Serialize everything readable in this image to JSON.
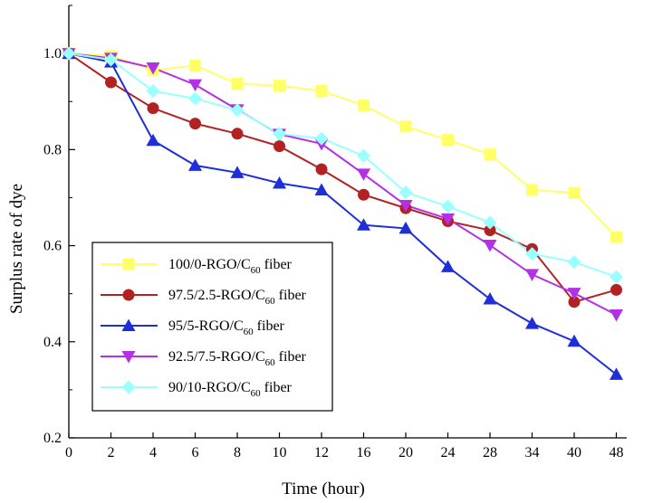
{
  "chart_data": {
    "type": "line",
    "xlabel": "Time (hour)",
    "ylabel": "Surplus rate of dye",
    "categories": [
      "0",
      "2",
      "4",
      "6",
      "8",
      "10",
      "12",
      "16",
      "20",
      "24",
      "28",
      "34",
      "40",
      "48"
    ],
    "ylim": [
      0.2,
      1.1
    ],
    "yticks": [
      "0.2",
      "0.4",
      "0.6",
      "0.8",
      "1.0"
    ],
    "grid": false,
    "legend_position": "bottom-left",
    "series": [
      {
        "name": "100/0-RGO/C60 fiber",
        "legend_main": "100/0-RGO/C",
        "legend_sub": "60",
        "legend_tail": " fiber",
        "color": "#ffff66",
        "marker": "square",
        "values": [
          1.0,
          0.995,
          0.965,
          0.975,
          0.937,
          0.933,
          0.922,
          0.892,
          0.848,
          0.82,
          0.79,
          0.716,
          0.71,
          0.618
        ]
      },
      {
        "name": "97.5/2.5-RGO/C60 fiber",
        "legend_main": "97.5/2.5-RGO/C",
        "legend_sub": "60",
        "legend_tail": " fiber",
        "color": "#b22222",
        "marker": "circle",
        "values": [
          1.0,
          0.94,
          0.886,
          0.854,
          0.833,
          0.807,
          0.759,
          0.706,
          0.678,
          0.651,
          0.632,
          0.593,
          0.483,
          0.508
        ]
      },
      {
        "name": "95/5-RGO/C60 fiber",
        "legend_main": "95/5-RGO/C",
        "legend_sub": "60",
        "legend_tail": " fiber",
        "color": "#1f2fd8",
        "marker": "triangle-up",
        "values": [
          1.0,
          0.982,
          0.819,
          0.767,
          0.752,
          0.73,
          0.716,
          0.643,
          0.636,
          0.556,
          0.489,
          0.438,
          0.401,
          0.332
        ]
      },
      {
        "name": "92.5/7.5-RGO/C60 fiber",
        "legend_main": "92.5/7.5-RGO/C",
        "legend_sub": "60",
        "legend_tail": " fiber",
        "color": "#b330e6",
        "marker": "triangle-down",
        "values": [
          1.0,
          0.99,
          0.97,
          0.935,
          0.883,
          0.832,
          0.812,
          0.749,
          0.684,
          0.656,
          0.601,
          0.54,
          0.501,
          0.456
        ]
      },
      {
        "name": "90/10-RGO/C60 fiber",
        "legend_main": "90/10-RGO/C",
        "legend_sub": "60",
        "legend_tail": " fiber",
        "color": "#99ffff",
        "marker": "diamond",
        "values": [
          1.0,
          0.987,
          0.922,
          0.906,
          0.882,
          0.833,
          0.823,
          0.787,
          0.711,
          0.682,
          0.648,
          0.583,
          0.566,
          0.535
        ]
      }
    ]
  }
}
